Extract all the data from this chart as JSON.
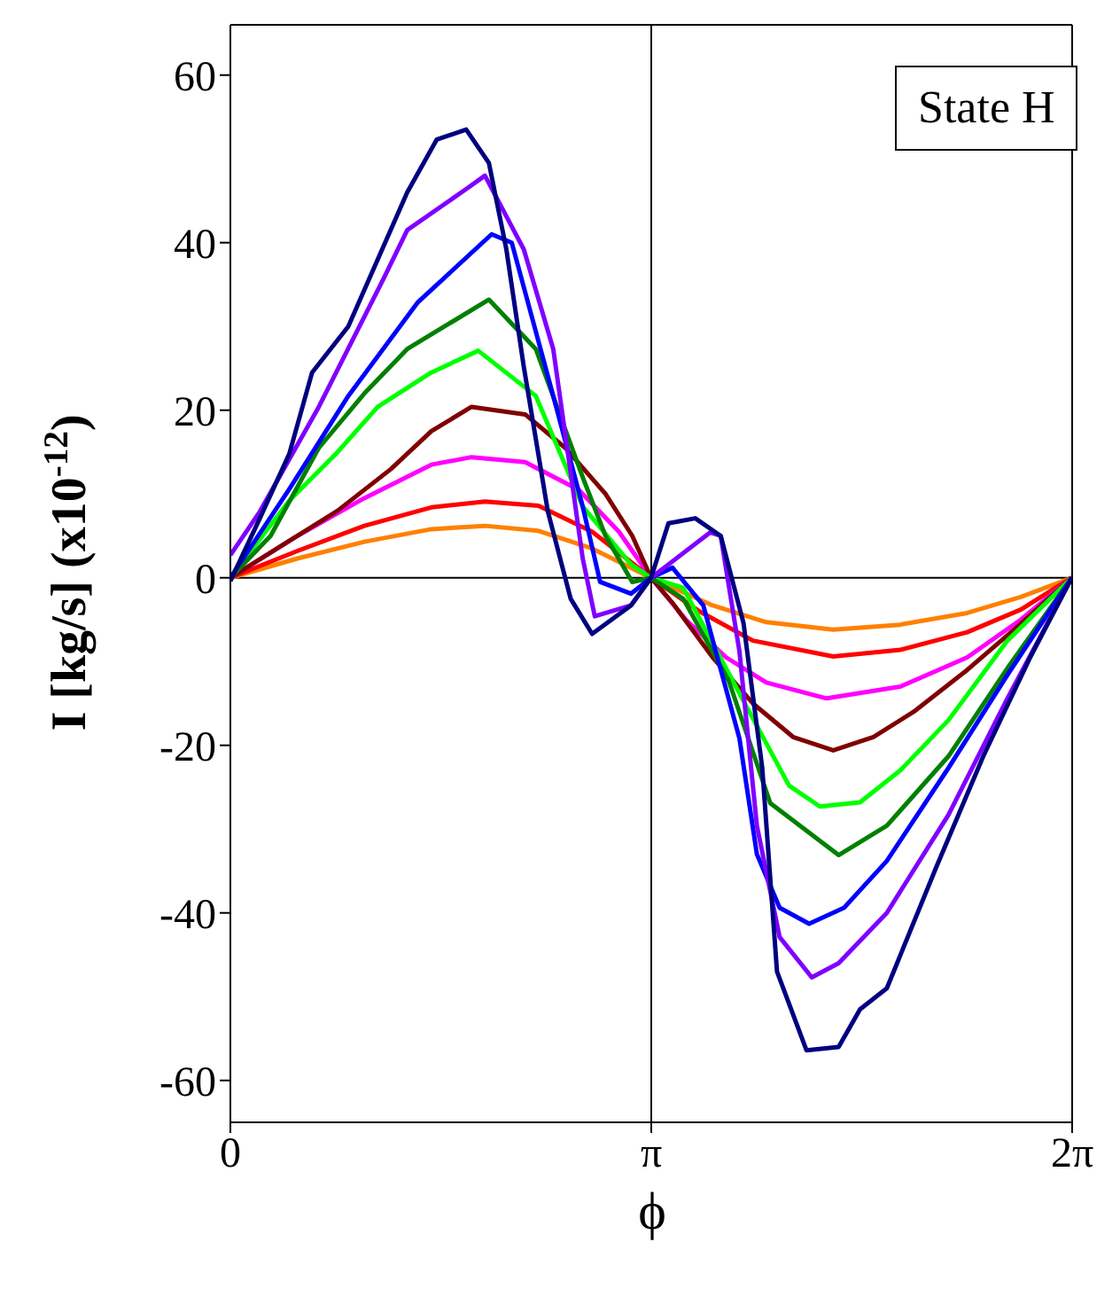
{
  "chart_data": {
    "type": "line",
    "xlabel": "ϕ",
    "ylabel": "I [kg/s] (x10$^{-12}$)",
    "annotations": [
      "State H"
    ],
    "xlim": [
      0,
      6.2832
    ],
    "xticks": [
      {
        "value": 0,
        "label": "0"
      },
      {
        "value": 3.1416,
        "label": "π"
      },
      {
        "value": 6.2832,
        "label": "2π"
      }
    ],
    "ylim": [
      -65,
      66
    ],
    "yticks": [
      -60,
      -40,
      -20,
      0,
      20,
      40,
      60
    ],
    "grid": false,
    "legend": false,
    "marker": "none",
    "line_style": "solid",
    "ref_lines": [
      {
        "axis": "y",
        "value": 0,
        "color": "#000000"
      },
      {
        "axis": "x",
        "value": 3.1416,
        "color": "#000000"
      }
    ],
    "series": [
      {
        "color": "#ff8000",
        "x": [
          0,
          0.5,
          1.0,
          1.5,
          1.9,
          2.3,
          2.7,
          3.14,
          3.6,
          4.0,
          4.5,
          5.0,
          5.5,
          5.9,
          6.28
        ],
        "values": [
          0,
          2.3,
          4.3,
          5.8,
          6.2,
          5.6,
          3.5,
          0,
          -3.3,
          -5.3,
          -6.2,
          -5.6,
          -4.2,
          -2.3,
          0
        ]
      },
      {
        "color": "#ff0000",
        "x": [
          0,
          0.5,
          1.0,
          1.5,
          1.9,
          2.3,
          2.7,
          3.14,
          3.5,
          3.9,
          4.5,
          5.0,
          5.5,
          5.9,
          6.28
        ],
        "values": [
          0,
          3.2,
          6.2,
          8.4,
          9.1,
          8.6,
          5.5,
          0,
          -4,
          -7.5,
          -9.4,
          -8.6,
          -6.5,
          -3.8,
          0
        ]
      },
      {
        "color": "#ff00ff",
        "x": [
          0,
          0.5,
          1.0,
          1.5,
          1.8,
          2.2,
          2.6,
          2.9,
          3.14,
          3.4,
          3.7,
          4.0,
          4.45,
          5.0,
          5.5,
          5.9,
          6.28
        ],
        "values": [
          0,
          5,
          9.5,
          13.5,
          14.4,
          13.8,
          10.5,
          5.5,
          0,
          -5,
          -9.5,
          -12.5,
          -14.4,
          -13,
          -9.5,
          -5,
          0
        ]
      },
      {
        "color": "#800000",
        "x": [
          0,
          0.4,
          0.8,
          1.2,
          1.5,
          1.8,
          2.2,
          2.5,
          2.8,
          3.0,
          3.14,
          3.3,
          3.6,
          3.9,
          4.2,
          4.5,
          4.8,
          5.1,
          5.5,
          5.9,
          6.28
        ],
        "values": [
          0,
          4,
          8,
          13,
          17.5,
          20.4,
          19.5,
          15.5,
          10,
          5,
          0,
          -3,
          -9.5,
          -15,
          -19,
          -20.6,
          -19,
          -16,
          -11,
          -5.5,
          0
        ]
      },
      {
        "color": "#00ff00",
        "x": [
          0,
          0.44,
          0.8,
          1.1,
          1.5,
          1.85,
          2.28,
          2.63,
          2.99,
          3.14,
          3.38,
          3.82,
          4.17,
          4.4,
          4.7,
          5.0,
          5.36,
          5.8,
          6.28
        ],
        "values": [
          0,
          9.2,
          15,
          20.4,
          24.5,
          27.1,
          21.7,
          8.5,
          1.6,
          0,
          -1.2,
          -14.4,
          -24.8,
          -27.3,
          -26.8,
          -23,
          -17,
          -7.5,
          0
        ]
      },
      {
        "color": "#008000",
        "x": [
          0,
          0.3,
          0.66,
          1.0,
          1.32,
          1.65,
          1.93,
          2.28,
          2.63,
          2.8,
          3.0,
          3.14,
          3.38,
          3.72,
          4.03,
          4.54,
          4.9,
          5.36,
          5.8,
          6.28
        ],
        "values": [
          0,
          5,
          15.5,
          22,
          27.3,
          30.5,
          33.2,
          27.3,
          12,
          5,
          -0.5,
          0,
          -2.5,
          -12.3,
          -26.9,
          -33.1,
          -29.6,
          -21.3,
          -10.8,
          0
        ]
      },
      {
        "color": "#0000ff",
        "x": [
          0,
          0.44,
          0.88,
          1.4,
          1.95,
          2.1,
          2.41,
          2.63,
          2.76,
          2.99,
          3.14,
          3.3,
          3.53,
          3.8,
          3.93,
          4.1,
          4.32,
          4.58,
          4.9,
          5.36,
          5.8,
          6.28
        ],
        "values": [
          0,
          10.6,
          21.7,
          32.9,
          41,
          40,
          21.7,
          8.5,
          -0.5,
          -1.9,
          0,
          1.2,
          -3.3,
          -19.2,
          -33,
          -39.4,
          -41.3,
          -39.4,
          -33.8,
          -22.7,
          -11.6,
          0
        ]
      },
      {
        "color": "#8000ff",
        "x": [
          0,
          0.22,
          0.66,
          1.14,
          1.32,
          1.76,
          1.9,
          2.19,
          2.41,
          2.63,
          2.72,
          2.99,
          3.14,
          3.58,
          3.66,
          3.8,
          3.93,
          4.1,
          4.34,
          4.54,
          4.9,
          5.36,
          5.8,
          6.28
        ],
        "values": [
          2.7,
          7.9,
          20.4,
          35.6,
          41.5,
          46.4,
          48,
          39.2,
          27.3,
          2.3,
          -4.6,
          -3.3,
          0,
          5.4,
          5,
          -8.8,
          -29.6,
          -42.9,
          -47.7,
          -46,
          -40,
          -28.3,
          -14.4,
          0
        ]
      },
      {
        "color": "#000080",
        "x": [
          0,
          0.22,
          0.44,
          0.61,
          0.88,
          1.32,
          1.54,
          1.76,
          1.93,
          2.06,
          2.19,
          2.37,
          2.54,
          2.7,
          2.99,
          3.14,
          3.27,
          3.47,
          3.66,
          3.83,
          3.97,
          4.08,
          4.3,
          4.54,
          4.7,
          4.9,
          5.27,
          5.62,
          5.97,
          6.28
        ],
        "values": [
          -0.4,
          7.1,
          14.8,
          24.5,
          30,
          46,
          52.3,
          53.5,
          49.5,
          39.2,
          25.2,
          7.9,
          -2.5,
          -6.7,
          -3.3,
          0,
          6.5,
          7.1,
          5,
          -5.4,
          -22.7,
          -47,
          -56.4,
          -56,
          -51.5,
          -49,
          -34.5,
          -21.3,
          -9.5,
          0
        ]
      }
    ]
  }
}
